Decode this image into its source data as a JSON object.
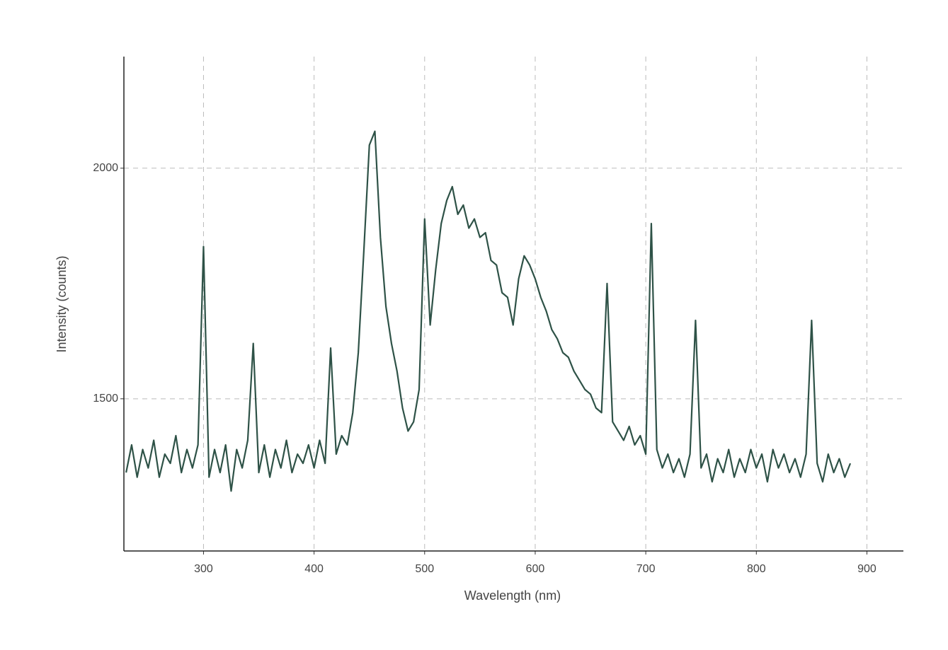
{
  "chart_data": {
    "type": "line",
    "x_label": "Wavelength (nm)",
    "y_label": "Intensity (counts)",
    "x": [
      230,
      235,
      240,
      245,
      250,
      255,
      260,
      265,
      270,
      275,
      280,
      285,
      290,
      295,
      300,
      305,
      310,
      315,
      320,
      325,
      330,
      335,
      340,
      345,
      350,
      355,
      360,
      365,
      370,
      375,
      380,
      385,
      390,
      395,
      400,
      405,
      410,
      415,
      420,
      425,
      430,
      435,
      440,
      445,
      450,
      455,
      460,
      465,
      470,
      475,
      480,
      485,
      490,
      495,
      500,
      505,
      510,
      515,
      520,
      525,
      530,
      535,
      540,
      545,
      550,
      555,
      560,
      565,
      570,
      575,
      580,
      585,
      590,
      595,
      600,
      605,
      610,
      615,
      620,
      625,
      630,
      635,
      640,
      645,
      650,
      655,
      660,
      665,
      670,
      675,
      680,
      685,
      690,
      695,
      700,
      705,
      710,
      715,
      720,
      725,
      730,
      735,
      740,
      745,
      750,
      755,
      760,
      765,
      770,
      775,
      780,
      785,
      790,
      795,
      800,
      805,
      810,
      815,
      820,
      825,
      830,
      835,
      840,
      845,
      850,
      855,
      860,
      865,
      870,
      875,
      880,
      885
    ],
    "series": [
      {
        "color": "#2e5247",
        "values": [
          1340,
          1400,
          1330,
          1390,
          1350,
          1410,
          1330,
          1380,
          1360,
          1420,
          1340,
          1390,
          1350,
          1400,
          1830,
          1330,
          1390,
          1340,
          1400,
          1300,
          1390,
          1350,
          1410,
          1620,
          1340,
          1400,
          1330,
          1390,
          1350,
          1410,
          1340,
          1380,
          1360,
          1400,
          1350,
          1410,
          1360,
          1610,
          1380,
          1420,
          1400,
          1470,
          1600,
          1820,
          2050,
          2080,
          1850,
          1700,
          1620,
          1560,
          1480,
          1430,
          1450,
          1520,
          1890,
          1660,
          1780,
          1880,
          1930,
          1960,
          1900,
          1920,
          1870,
          1890,
          1850,
          1860,
          1800,
          1790,
          1730,
          1720,
          1660,
          1760,
          1810,
          1790,
          1760,
          1720,
          1690,
          1650,
          1630,
          1600,
          1590,
          1560,
          1540,
          1520,
          1510,
          1480,
          1470,
          1750,
          1450,
          1430,
          1410,
          1440,
          1400,
          1420,
          1380,
          1880,
          1390,
          1350,
          1380,
          1340,
          1370,
          1330,
          1380,
          1670,
          1350,
          1380,
          1320,
          1370,
          1340,
          1390,
          1330,
          1370,
          1340,
          1390,
          1350,
          1380,
          1320,
          1390,
          1350,
          1380,
          1340,
          1370,
          1330,
          1380,
          1670,
          1360,
          1320,
          1380,
          1340,
          1370,
          1330,
          1360
        ]
      }
    ],
    "xlim": [
      228,
      933
    ],
    "ylim": [
      1170,
      2242
    ],
    "xticks": [
      300,
      400,
      500,
      600,
      700,
      800,
      900
    ],
    "yticks": [
      1500,
      2000
    ],
    "grid": true
  }
}
